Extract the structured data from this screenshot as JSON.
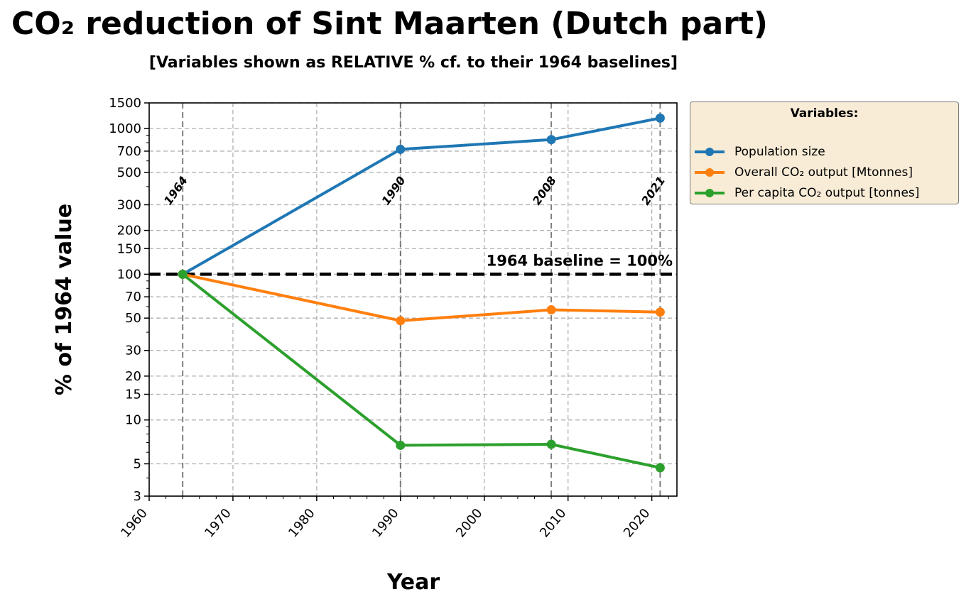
{
  "chart_data": {
    "type": "line",
    "title": "CO₂ reduction of Sint Maarten (Dutch part)",
    "subtitle": "[Variables shown as RELATIVE % cf. to their 1964 baselines]",
    "xlabel": "Year",
    "ylabel": "% of 1964 value",
    "x": [
      1964,
      1990,
      2008,
      2021
    ],
    "series": [
      {
        "name": "Population size",
        "color": "#1f77b4",
        "values": [
          100,
          720,
          840,
          1180
        ]
      },
      {
        "name": "Overall CO₂ output  [Mtonnes]",
        "color": "#ff7f0e",
        "values": [
          100,
          48,
          57,
          55
        ]
      },
      {
        "name": "Per capita CO₂ output  [tonnes]",
        "color": "#2ca02c",
        "values": [
          100,
          6.7,
          6.8,
          4.7
        ]
      }
    ],
    "y_scale": "log",
    "ylim": [
      3,
      1500
    ],
    "xlim": [
      1960,
      2023
    ],
    "x_ticks": [
      1960,
      1970,
      1980,
      1990,
      2000,
      2010,
      2020
    ],
    "x_tick_labels": [
      "1960",
      "1970",
      "1980",
      "1990",
      "2000",
      "2010",
      "2020"
    ],
    "y_ticks": [
      3,
      5,
      10,
      15,
      20,
      30,
      50,
      70,
      100,
      150,
      200,
      300,
      500,
      700,
      1000,
      1500
    ],
    "y_tick_labels": [
      "3",
      "5",
      "10",
      "15",
      "20",
      "30",
      "50",
      "70",
      "100",
      "150",
      "200",
      "300",
      "500",
      "700",
      "1000",
      "1500"
    ],
    "grid": true,
    "vertical_markers": [
      {
        "year": 1964,
        "label": "1964"
      },
      {
        "year": 1990,
        "label": "1990"
      },
      {
        "year": 2008,
        "label": "2008"
      },
      {
        "year": 2021,
        "label": "2021"
      }
    ],
    "baseline": {
      "value": 100,
      "label": "1964 baseline = 100%"
    },
    "legend": {
      "title": "Variables:",
      "placement": "outside-top-right"
    }
  }
}
